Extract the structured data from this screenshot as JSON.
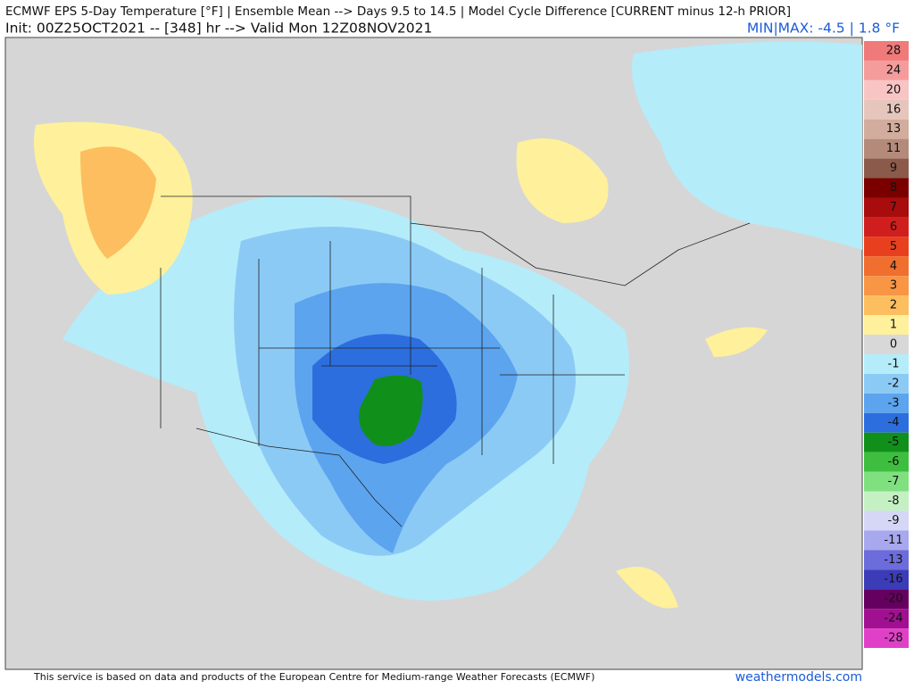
{
  "header": {
    "title": "ECMWF EPS 5-Day Temperature [°F] | Ensemble Mean --> Days 9.5 to 14.5 | Model Cycle Difference [CURRENT minus 12-h PRIOR]",
    "init": "Init: 00Z25OCT2021 -- [348] hr --> Valid Mon 12Z08NOV2021",
    "minmax": "MIN|MAX: -4.5 | 1.8 °F"
  },
  "colorbar": {
    "levels": [
      {
        "label": "28",
        "color": "#f07a7a"
      },
      {
        "label": "24",
        "color": "#f49c9c"
      },
      {
        "label": "20",
        "color": "#f8c4c4"
      },
      {
        "label": "16",
        "color": "#e6c6bc"
      },
      {
        "label": "13",
        "color": "#d2ac9c"
      },
      {
        "label": "11",
        "color": "#b48a7a"
      },
      {
        "label": "9",
        "color": "#8c5a4a"
      },
      {
        "label": "8",
        "color": "#7a0000"
      },
      {
        "label": "7",
        "color": "#a80c0c"
      },
      {
        "label": "6",
        "color": "#d01e1e"
      },
      {
        "label": "5",
        "color": "#e8401e"
      },
      {
        "label": "4",
        "color": "#f06e2e"
      },
      {
        "label": "3",
        "color": "#f89646"
      },
      {
        "label": "2",
        "color": "#fcbe5e"
      },
      {
        "label": "1",
        "color": "#fff09c"
      },
      {
        "label": "0",
        "color": "#d8d8d8"
      },
      {
        "label": "-1",
        "color": "#b4ecfa"
      },
      {
        "label": "-2",
        "color": "#8ccaf6"
      },
      {
        "label": "-3",
        "color": "#5ca4ee"
      },
      {
        "label": "-4",
        "color": "#2c6ede"
      },
      {
        "label": "-5",
        "color": "#10901a"
      },
      {
        "label": "-6",
        "color": "#3ebe3e"
      },
      {
        "label": "-7",
        "color": "#80e080"
      },
      {
        "label": "-8",
        "color": "#c4f0c4"
      },
      {
        "label": "-9",
        "color": "#d6d6f6"
      },
      {
        "label": "-11",
        "color": "#a8a8ee"
      },
      {
        "label": "-13",
        "color": "#6c6cdc"
      },
      {
        "label": "-16",
        "color": "#3c3cb8"
      },
      {
        "label": "-20",
        "color": "#660060"
      },
      {
        "label": "-24",
        "color": "#a01090"
      },
      {
        "label": "-28",
        "color": "#e040c8"
      }
    ]
  },
  "footer": {
    "credit": "This service is based on data and products of the European Centre for Medium-range Weather Forecasts (ECMWF)",
    "brand": "weathermodels.com"
  }
}
